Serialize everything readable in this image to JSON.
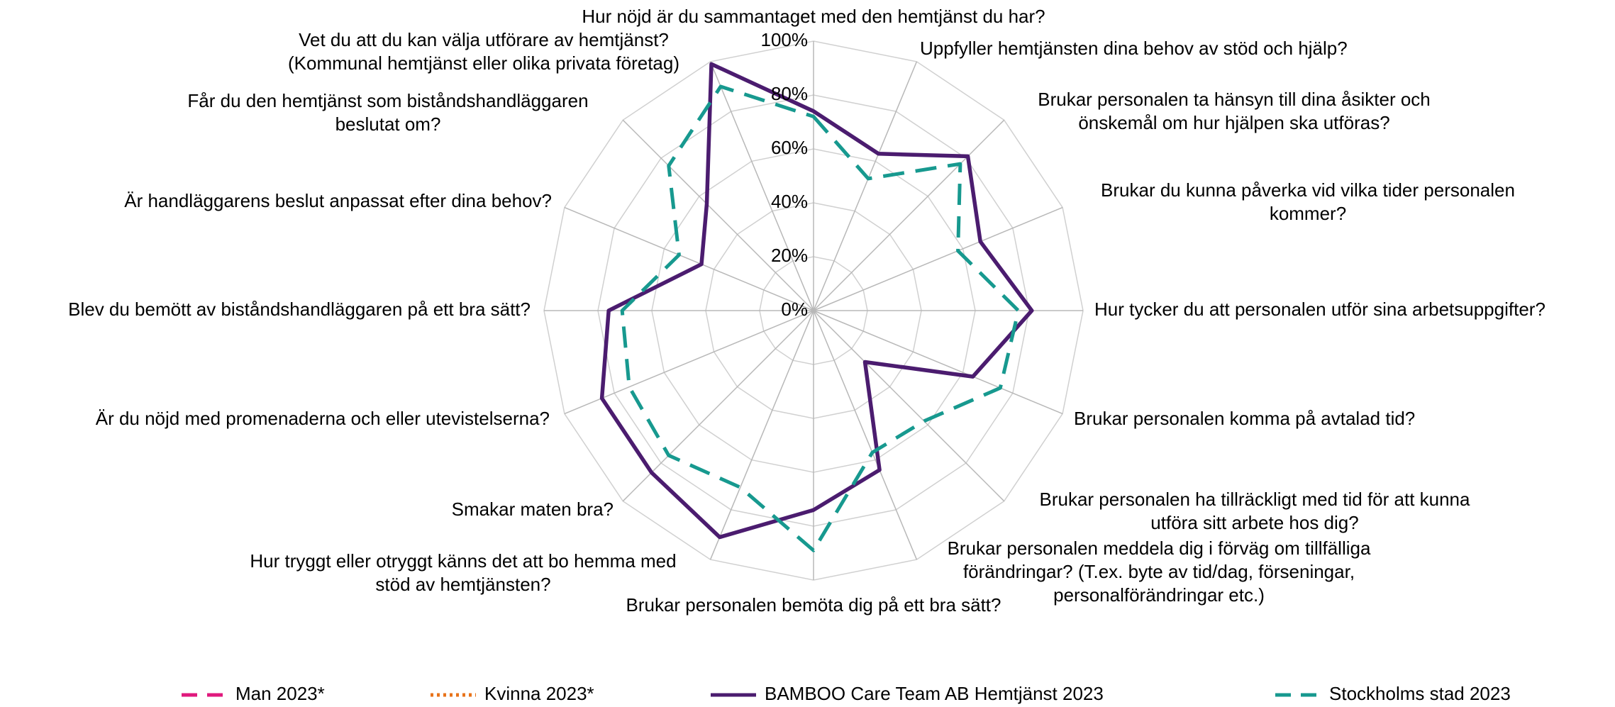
{
  "chart_data": {
    "type": "radar",
    "categories": [
      [
        "Hur nöjd är du sammantaget med den hemtjänst du har?"
      ],
      [
        "Uppfyller hemtjänsten dina behov av stöd och hjälp?"
      ],
      [
        "Brukar personalen ta hänsyn till dina åsikter och",
        "önskemål om hur hjälpen ska utföras?"
      ],
      [
        "Brukar du kunna påverka vid vilka tider personalen",
        "kommer?"
      ],
      [
        "Hur tycker du att personalen utför sina  arbetsuppgifter?"
      ],
      [
        "Brukar personalen komma på avtalad tid?"
      ],
      [
        "Brukar personalen ha tillräckligt med tid för att kunna",
        "utföra sitt arbete hos dig?"
      ],
      [
        "Brukar personalen meddela dig i förväg om tillfälliga",
        "förändringar? (T.ex. byte av tid/dag, förseningar,",
        "personalförändringar etc.)"
      ],
      [
        "Brukar personalen bemöta dig på ett bra sätt?"
      ],
      [
        "Hur tryggt eller otryggt känns det att bo hemma med",
        "stöd av hemtjänsten?"
      ],
      [
        "Smakar maten bra?"
      ],
      [
        "Är du nöjd med promenaderna och eller utevistelserna?"
      ],
      [
        "Blev du bemött av biståndshandläggaren på ett bra sätt?"
      ],
      [
        "Är handläggarens beslut anpassat efter dina behov?"
      ],
      [
        "Får du den hemtjänst som biståndshandläggaren",
        "beslutat om?"
      ],
      [
        "Vet du att du kan välja utförare av hemtjänst?",
        "(Kommunal hemtjänst eller olika privata företag)"
      ]
    ],
    "series": [
      {
        "name": "Man 2023*",
        "color": "#e0197d",
        "dash": "dashed",
        "values": [
          null,
          null,
          null,
          null,
          null,
          null,
          null,
          null,
          null,
          null,
          null,
          null,
          null,
          null,
          null,
          null
        ]
      },
      {
        "name": "Kvinna 2023*",
        "color": "#e8731a",
        "dash": "dotted",
        "values": [
          null,
          null,
          null,
          null,
          null,
          null,
          null,
          null,
          null,
          null,
          null,
          null,
          null,
          null,
          null,
          null
        ]
      },
      {
        "name": "BAMBOO Care Team AB Hemtjänst 2023",
        "color": "#4b1c6f",
        "dash": "solid",
        "values": [
          74,
          63,
          81,
          67,
          81,
          64,
          27,
          64,
          74,
          91,
          85,
          85,
          76,
          45,
          56,
          99
        ]
      },
      {
        "name": "Stockholms stad 2023",
        "color": "#17998f",
        "dash": "dashed",
        "values": [
          72,
          53,
          77,
          58,
          76,
          75,
          58,
          57,
          89,
          71,
          76,
          74,
          71,
          54,
          76,
          90
        ]
      }
    ],
    "ylim": [
      0,
      100
    ],
    "yticks": [
      {
        "value": 0,
        "label": "0%"
      },
      {
        "value": 20,
        "label": "20%"
      },
      {
        "value": 40,
        "label": "40%"
      },
      {
        "value": 60,
        "label": "60%"
      },
      {
        "value": 80,
        "label": "80%"
      },
      {
        "value": 100,
        "label": "100%"
      }
    ],
    "grid": true,
    "legend": "bottom"
  }
}
